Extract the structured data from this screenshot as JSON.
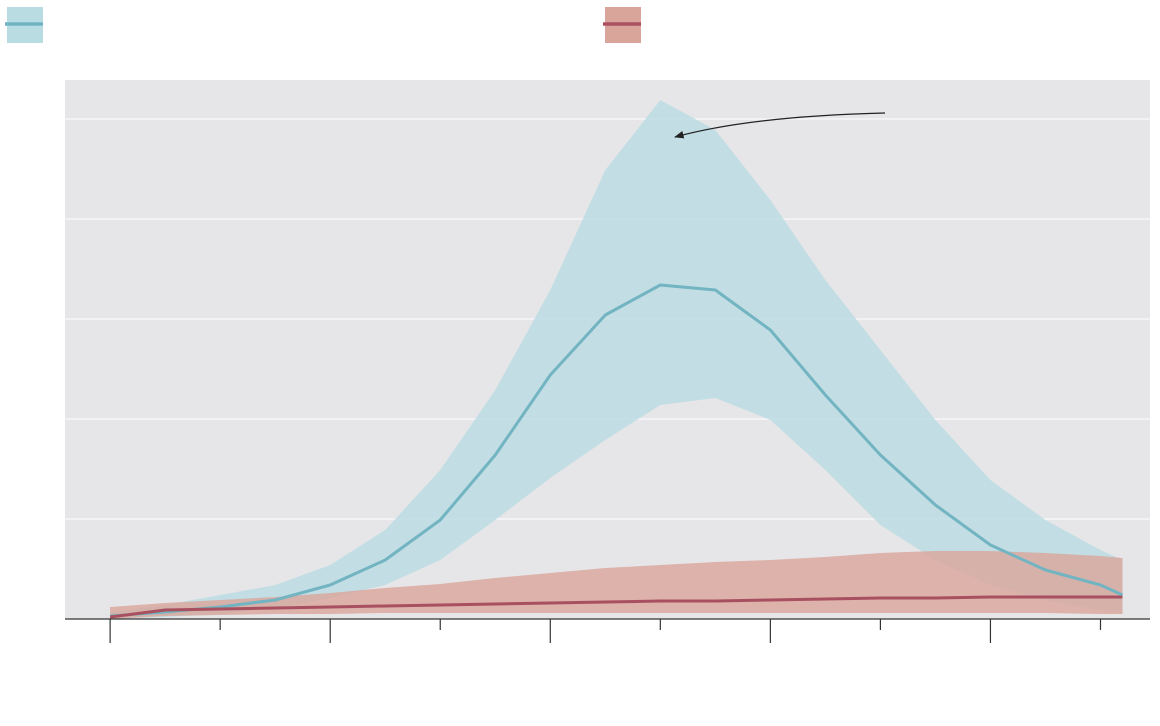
{
  "chart_data": {
    "type": "band-line",
    "x": [
      0,
      0.5,
      1,
      1.5,
      2,
      2.5,
      3,
      3.5,
      4,
      4.5,
      5,
      5.5,
      6,
      6.5,
      7,
      7.5,
      8,
      8.5,
      9,
      9.2
    ],
    "series": [
      {
        "color": "#72b4c1",
        "band_color": "#b9dce2",
        "values": [
          0.03,
          0.07,
          0.12,
          0.19,
          0.34,
          0.59,
          0.99,
          1.64,
          2.44,
          3.04,
          3.34,
          3.29,
          2.89,
          2.24,
          1.64,
          1.14,
          0.74,
          0.49,
          0.34,
          0.24
        ],
        "upper": [
          0.07,
          0.14,
          0.24,
          0.34,
          0.54,
          0.89,
          1.49,
          2.29,
          3.29,
          4.49,
          5.19,
          4.89,
          4.19,
          3.39,
          2.69,
          1.99,
          1.39,
          0.99,
          0.69,
          0.59
        ],
        "lower": [
          0,
          0.02,
          0.05,
          0.11,
          0.21,
          0.34,
          0.59,
          0.99,
          1.41,
          1.79,
          2.14,
          2.21,
          1.99,
          1.49,
          0.94,
          0.59,
          0.34,
          0.19,
          0.09,
          0.07
        ]
      },
      {
        "color": "#a8505f",
        "band_color": "#d9a59b",
        "values": [
          0.02,
          0.09,
          0.1,
          0.11,
          0.12,
          0.13,
          0.14,
          0.15,
          0.16,
          0.17,
          0.18,
          0.18,
          0.19,
          0.2,
          0.21,
          0.21,
          0.22,
          0.22,
          0.22,
          0.22
        ],
        "upper": [
          0.12,
          0.16,
          0.19,
          0.22,
          0.26,
          0.31,
          0.35,
          0.41,
          0.46,
          0.51,
          0.54,
          0.57,
          0.59,
          0.62,
          0.66,
          0.68,
          0.68,
          0.66,
          0.63,
          0.61
        ],
        "lower": [
          0,
          0.03,
          0.04,
          0.05,
          0.05,
          0.06,
          0.06,
          0.06,
          0.06,
          0.06,
          0.06,
          0.06,
          0.06,
          0.06,
          0.06,
          0.06,
          0.06,
          0.06,
          0.05,
          0.05
        ]
      }
    ],
    "xlim": [
      -0.41,
      9.45
    ],
    "xticks": [
      0,
      2,
      4,
      6,
      8
    ],
    "x_minor_ticks": [
      1,
      3,
      5,
      7,
      9
    ],
    "ylim": [
      0,
      5.39
    ],
    "yticks": [
      0,
      1,
      2,
      3,
      4,
      5
    ],
    "grid": true,
    "background": "#e6e6e8"
  }
}
